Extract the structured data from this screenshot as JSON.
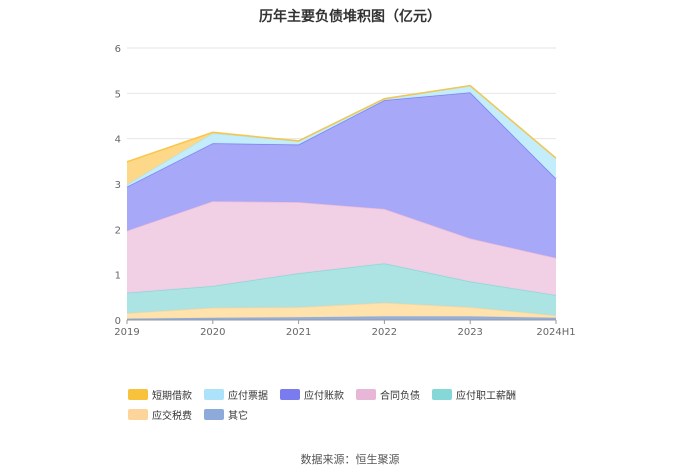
{
  "chart_data": {
    "type": "area",
    "stacked": true,
    "title": "历年主要负债堆积图（亿元）",
    "categories": [
      "2019",
      "2020",
      "2021",
      "2022",
      "2023",
      "2024H1"
    ],
    "ylim": [
      0,
      6
    ],
    "yticks": [
      0,
      1,
      2,
      3,
      4,
      5,
      6
    ],
    "grid": true,
    "legend_position": "bottom",
    "series": [
      {
        "name": "其它",
        "color": "#8eaadb",
        "values": [
          0.03,
          0.05,
          0.06,
          0.08,
          0.08,
          0.05
        ]
      },
      {
        "name": "应交税费",
        "color": "#ffe0a8",
        "values": [
          0.12,
          0.22,
          0.22,
          0.3,
          0.2,
          0.05
        ]
      },
      {
        "name": "应付职工薪酬",
        "color": "#a8e2e2",
        "values": [
          0.45,
          0.48,
          0.75,
          0.87,
          0.57,
          0.45
        ]
      },
      {
        "name": "合同负债",
        "color": "#f0cce4",
        "values": [
          1.37,
          1.87,
          1.57,
          1.2,
          0.95,
          0.82
        ]
      },
      {
        "name": "应付账款",
        "color": "#a3a3f8",
        "values": [
          0.97,
          1.28,
          1.27,
          2.4,
          3.22,
          1.75
        ]
      },
      {
        "name": "应付票据",
        "color": "#c0ecfb",
        "values": [
          0.05,
          0.22,
          0.08,
          0.03,
          0.15,
          0.45
        ]
      },
      {
        "name": "短期借款",
        "color": "#fdd682",
        "values": [
          0.5,
          0.02,
          0.0,
          0.0,
          0.0,
          0.0
        ]
      }
    ]
  },
  "legend": [
    {
      "label": "短期借款",
      "color": "#f9c23c"
    },
    {
      "label": "应付票据",
      "color": "#ade3fa"
    },
    {
      "label": "应付账款",
      "color": "#7b7bf0"
    },
    {
      "label": "合同负债",
      "color": "#e8b7d8"
    },
    {
      "label": "应付职工薪酬",
      "color": "#86d7d7"
    },
    {
      "label": "应交税费",
      "color": "#fdd59b"
    },
    {
      "label": "其它",
      "color": "#8eaadb"
    }
  ],
  "source": "数据来源：恒生聚源"
}
